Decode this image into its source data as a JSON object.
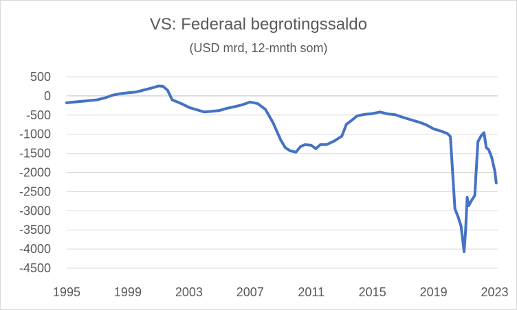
{
  "chart_data": {
    "type": "line",
    "title": "VS: Federaal begrotingssaldo",
    "subtitle": "(USD mrd, 12-mnth som)",
    "xlabel": "",
    "ylabel": "",
    "xlim": [
      1995,
      2023.2
    ],
    "ylim": [
      -4500,
      500
    ],
    "x_ticks": [
      1995,
      1999,
      2003,
      2007,
      2011,
      2015,
      2019,
      2023
    ],
    "y_ticks": [
      500,
      0,
      -500,
      -1000,
      -1500,
      -2000,
      -2500,
      -3000,
      -3500,
      -4000,
      -4500
    ],
    "grid": "horizontal",
    "legend": "none",
    "series": [
      {
        "color": "#4472c4",
        "x": [
          1995.0,
          1995.5,
          1996.0,
          1996.5,
          1997.0,
          1997.5,
          1998.0,
          1998.5,
          1999.0,
          1999.5,
          2000.0,
          2000.5,
          2001.0,
          2001.3,
          2001.6,
          2001.9,
          2002.2,
          2002.5,
          2003.0,
          2003.5,
          2004.0,
          2004.5,
          2005.0,
          2005.5,
          2006.0,
          2006.5,
          2007.0,
          2007.5,
          2008.0,
          2008.5,
          2009.0,
          2009.3,
          2009.6,
          2010.0,
          2010.3,
          2010.6,
          2011.0,
          2011.3,
          2011.6,
          2012.0,
          2012.5,
          2013.0,
          2013.3,
          2013.6,
          2014.0,
          2014.5,
          2015.0,
          2015.5,
          2016.0,
          2016.5,
          2017.0,
          2017.5,
          2018.0,
          2018.5,
          2019.0,
          2019.5,
          2019.9,
          2020.1,
          2020.25,
          2020.4,
          2020.6,
          2020.8,
          2021.0,
          2021.1,
          2021.2,
          2021.3,
          2021.5,
          2021.7,
          2021.9,
          2022.1,
          2022.3,
          2022.45,
          2022.6,
          2022.8,
          2023.0,
          2023.1
        ],
        "y": [
          -180,
          -160,
          -140,
          -120,
          -100,
          -50,
          20,
          60,
          80,
          100,
          150,
          200,
          260,
          250,
          150,
          -100,
          -150,
          -200,
          -300,
          -360,
          -420,
          -400,
          -380,
          -320,
          -280,
          -230,
          -160,
          -200,
          -350,
          -700,
          -1150,
          -1350,
          -1430,
          -1470,
          -1320,
          -1270,
          -1290,
          -1380,
          -1270,
          -1270,
          -1180,
          -1050,
          -740,
          -650,
          -520,
          -480,
          -460,
          -420,
          -470,
          -490,
          -560,
          -620,
          -680,
          -750,
          -860,
          -920,
          -980,
          -1060,
          -2000,
          -2950,
          -3150,
          -3400,
          -4070,
          -3500,
          -2650,
          -2870,
          -2720,
          -2600,
          -1200,
          -1050,
          -960,
          -1350,
          -1400,
          -1600,
          -1950,
          -2270
        ]
      }
    ]
  }
}
